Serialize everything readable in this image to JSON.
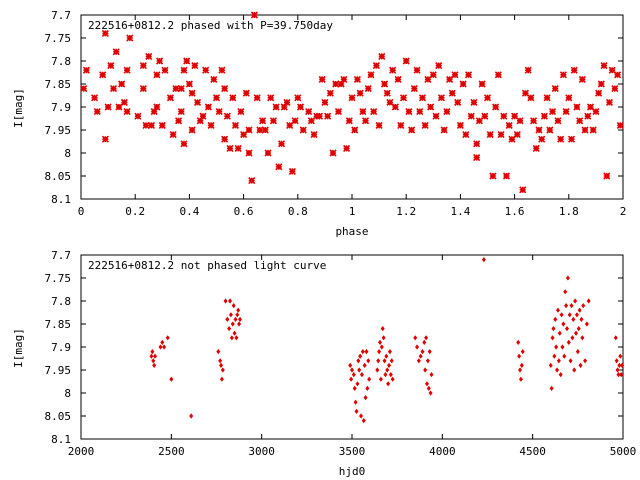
{
  "colors": {
    "points": "#e00000",
    "axes": "#000000",
    "background": "#ffffff"
  },
  "chart_data": [
    {
      "type": "scatter",
      "title": "222516+0812.2 phased with P=39.750day",
      "xlabel": "phase",
      "ylabel": "I[mag]",
      "xlim": [
        0,
        2
      ],
      "ylim": [
        8.1,
        7.7
      ],
      "y_inverted": true,
      "x_ticks": [
        0,
        0.2,
        0.4,
        0.6,
        0.8,
        1,
        1.2,
        1.4,
        1.6,
        1.8,
        2
      ],
      "x_tick_labels": [
        "0",
        "0.2",
        "0.4",
        "0.6",
        "0.8",
        "1",
        "1.2",
        "1.4",
        "1.6",
        "1.8",
        "2"
      ],
      "y_ticks": [
        7.7,
        7.75,
        7.8,
        7.85,
        7.9,
        7.95,
        8,
        8.05,
        8.1
      ],
      "y_tick_labels": [
        "7.7",
        "7.75",
        "7.8",
        "7.85",
        "7.9",
        "7.95",
        "8",
        "8.05",
        "8.1"
      ],
      "grid": false,
      "marker": "star",
      "points": [
        [
          0.01,
          7.86
        ],
        [
          0.02,
          7.82
        ],
        [
          0.05,
          7.88
        ],
        [
          0.06,
          7.91
        ],
        [
          0.08,
          7.83
        ],
        [
          0.09,
          7.74
        ],
        [
          0.09,
          7.97
        ],
        [
          0.1,
          7.9
        ],
        [
          0.11,
          7.81
        ],
        [
          0.12,
          7.86
        ],
        [
          0.13,
          7.78
        ],
        [
          0.14,
          7.9
        ],
        [
          0.15,
          7.85
        ],
        [
          0.16,
          7.89
        ],
        [
          0.17,
          7.82
        ],
        [
          0.17,
          7.91
        ],
        [
          0.18,
          7.75
        ],
        [
          0.21,
          7.92
        ],
        [
          0.23,
          7.81
        ],
        [
          0.23,
          7.86
        ],
        [
          0.24,
          7.94
        ],
        [
          0.25,
          7.79
        ],
        [
          0.26,
          7.94
        ],
        [
          0.27,
          7.91
        ],
        [
          0.28,
          7.83
        ],
        [
          0.28,
          7.9
        ],
        [
          0.29,
          7.8
        ],
        [
          0.3,
          7.94
        ],
        [
          0.31,
          7.82
        ],
        [
          0.33,
          7.88
        ],
        [
          0.34,
          7.96
        ],
        [
          0.35,
          7.86
        ],
        [
          0.36,
          7.93
        ],
        [
          0.37,
          7.86
        ],
        [
          0.37,
          7.91
        ],
        [
          0.38,
          7.98
        ],
        [
          0.38,
          7.82
        ],
        [
          0.39,
          7.8
        ],
        [
          0.4,
          7.85
        ],
        [
          0.41,
          7.87
        ],
        [
          0.41,
          7.95
        ],
        [
          0.42,
          7.81
        ],
        [
          0.43,
          7.89
        ],
        [
          0.44,
          7.93
        ],
        [
          0.45,
          7.92
        ],
        [
          0.46,
          7.82
        ],
        [
          0.47,
          7.9
        ],
        [
          0.48,
          7.94
        ],
        [
          0.49,
          7.84
        ],
        [
          0.5,
          7.88
        ],
        [
          0.51,
          7.91
        ],
        [
          0.52,
          7.82
        ],
        [
          0.53,
          7.86
        ],
        [
          0.53,
          7.97
        ],
        [
          0.54,
          7.92
        ],
        [
          0.55,
          7.99
        ],
        [
          0.56,
          7.88
        ],
        [
          0.57,
          7.94
        ],
        [
          0.58,
          7.99
        ],
        [
          0.59,
          7.91
        ],
        [
          0.6,
          7.96
        ],
        [
          0.61,
          7.87
        ],
        [
          0.62,
          7.95
        ],
        [
          0.62,
          8.0
        ],
        [
          0.63,
          8.06
        ],
        [
          0.64,
          7.7
        ],
        [
          0.65,
          7.88
        ],
        [
          0.66,
          7.95
        ],
        [
          0.67,
          7.93
        ],
        [
          0.68,
          7.95
        ],
        [
          0.69,
          8.0
        ],
        [
          0.7,
          7.88
        ],
        [
          0.71,
          7.93
        ],
        [
          0.72,
          7.9
        ],
        [
          0.73,
          8.03
        ],
        [
          0.74,
          7.98
        ],
        [
          0.75,
          7.9
        ],
        [
          0.76,
          7.89
        ],
        [
          0.77,
          7.94
        ],
        [
          0.78,
          8.04
        ],
        [
          0.79,
          7.93
        ],
        [
          0.8,
          7.88
        ],
        [
          0.81,
          7.9
        ],
        [
          0.82,
          7.95
        ],
        [
          0.84,
          7.91
        ],
        [
          0.85,
          7.93
        ],
        [
          0.86,
          7.96
        ],
        [
          0.87,
          7.92
        ],
        [
          0.88,
          7.92
        ],
        [
          0.89,
          7.84
        ],
        [
          0.9,
          7.89
        ],
        [
          0.91,
          7.92
        ],
        [
          0.92,
          7.87
        ],
        [
          0.93,
          8.0
        ],
        [
          0.94,
          7.85
        ],
        [
          0.95,
          7.91
        ],
        [
          0.96,
          7.85
        ],
        [
          0.97,
          7.84
        ],
        [
          0.98,
          7.99
        ],
        [
          0.99,
          7.93
        ],
        [
          1.0,
          7.88
        ],
        [
          1.01,
          7.95
        ],
        [
          1.02,
          7.84
        ],
        [
          1.03,
          7.87
        ],
        [
          1.04,
          7.91
        ],
        [
          1.05,
          7.93
        ],
        [
          1.06,
          7.86
        ],
        [
          1.07,
          7.83
        ],
        [
          1.08,
          7.91
        ],
        [
          1.09,
          7.81
        ],
        [
          1.1,
          7.94
        ],
        [
          1.11,
          7.79
        ],
        [
          1.12,
          7.85
        ],
        [
          1.13,
          7.87
        ],
        [
          1.14,
          7.89
        ],
        [
          1.15,
          7.82
        ],
        [
          1.16,
          7.9
        ],
        [
          1.17,
          7.84
        ],
        [
          1.18,
          7.94
        ],
        [
          1.19,
          7.88
        ],
        [
          1.2,
          7.8
        ],
        [
          1.21,
          7.91
        ],
        [
          1.22,
          7.95
        ],
        [
          1.23,
          7.86
        ],
        [
          1.24,
          7.82
        ],
        [
          1.25,
          7.91
        ],
        [
          1.26,
          7.88
        ],
        [
          1.27,
          7.94
        ],
        [
          1.28,
          7.84
        ],
        [
          1.29,
          7.9
        ],
        [
          1.3,
          7.83
        ],
        [
          1.31,
          7.92
        ],
        [
          1.32,
          7.81
        ],
        [
          1.33,
          7.88
        ],
        [
          1.34,
          7.95
        ],
        [
          1.35,
          7.91
        ],
        [
          1.36,
          7.84
        ],
        [
          1.37,
          7.87
        ],
        [
          1.38,
          7.83
        ],
        [
          1.39,
          7.89
        ],
        [
          1.4,
          7.94
        ],
        [
          1.41,
          7.85
        ],
        [
          1.42,
          7.96
        ],
        [
          1.43,
          7.83
        ],
        [
          1.44,
          7.92
        ],
        [
          1.45,
          7.89
        ],
        [
          1.46,
          7.98
        ],
        [
          1.46,
          8.01
        ],
        [
          1.47,
          7.93
        ],
        [
          1.48,
          7.85
        ],
        [
          1.49,
          7.92
        ],
        [
          1.5,
          7.88
        ],
        [
          1.51,
          7.96
        ],
        [
          1.52,
          8.05
        ],
        [
          1.53,
          7.9
        ],
        [
          1.54,
          7.83
        ],
        [
          1.55,
          7.96
        ],
        [
          1.56,
          7.92
        ],
        [
          1.57,
          8.05
        ],
        [
          1.58,
          7.94
        ],
        [
          1.59,
          7.97
        ],
        [
          1.6,
          7.92
        ],
        [
          1.61,
          7.96
        ],
        [
          1.62,
          7.93
        ],
        [
          1.63,
          8.08
        ],
        [
          1.64,
          7.87
        ],
        [
          1.65,
          7.82
        ],
        [
          1.66,
          7.88
        ],
        [
          1.67,
          7.93
        ],
        [
          1.68,
          7.99
        ],
        [
          1.69,
          7.95
        ],
        [
          1.7,
          7.97
        ],
        [
          1.71,
          7.92
        ],
        [
          1.72,
          7.88
        ],
        [
          1.73,
          7.95
        ],
        [
          1.74,
          7.91
        ],
        [
          1.75,
          7.86
        ],
        [
          1.76,
          7.93
        ],
        [
          1.77,
          7.97
        ],
        [
          1.78,
          7.83
        ],
        [
          1.79,
          7.91
        ],
        [
          1.8,
          7.88
        ],
        [
          1.81,
          7.97
        ],
        [
          1.82,
          7.82
        ],
        [
          1.83,
          7.9
        ],
        [
          1.84,
          7.93
        ],
        [
          1.85,
          7.84
        ],
        [
          1.86,
          7.95
        ],
        [
          1.87,
          7.92
        ],
        [
          1.88,
          7.9
        ],
        [
          1.89,
          7.95
        ],
        [
          1.9,
          7.91
        ],
        [
          1.91,
          7.87
        ],
        [
          1.92,
          7.85
        ],
        [
          1.93,
          7.81
        ],
        [
          1.94,
          8.05
        ],
        [
          1.95,
          7.89
        ],
        [
          1.96,
          7.82
        ],
        [
          1.97,
          7.86
        ],
        [
          1.98,
          7.83
        ],
        [
          1.99,
          7.94
        ]
      ]
    },
    {
      "type": "scatter",
      "title": "222516+0812.2 not phased light curve",
      "xlabel": "hjd0",
      "ylabel": "I[mag]",
      "xlim": [
        2000,
        5000
      ],
      "ylim": [
        8.1,
        7.7
      ],
      "y_inverted": true,
      "x_ticks": [
        2000,
        2500,
        3000,
        3500,
        4000,
        4500,
        5000
      ],
      "x_tick_labels": [
        "2000",
        "2500",
        "3000",
        "3500",
        "4000",
        "4500",
        "5000"
      ],
      "y_ticks": [
        7.7,
        7.75,
        7.8,
        7.85,
        7.9,
        7.95,
        8,
        8.05,
        8.1
      ],
      "y_tick_labels": [
        "7.7",
        "7.75",
        "7.8",
        "7.85",
        "7.9",
        "7.95",
        "8",
        "8.05",
        "8.1"
      ],
      "grid": false,
      "marker": "diamond",
      "points": [
        [
          2390,
          7.92
        ],
        [
          2395,
          7.91
        ],
        [
          2400,
          7.93
        ],
        [
          2405,
          7.94
        ],
        [
          2410,
          7.92
        ],
        [
          2440,
          7.9
        ],
        [
          2450,
          7.89
        ],
        [
          2460,
          7.9
        ],
        [
          2480,
          7.88
        ],
        [
          2500,
          7.97
        ],
        [
          2610,
          8.05
        ],
        [
          2760,
          7.91
        ],
        [
          2770,
          7.93
        ],
        [
          2775,
          7.94
        ],
        [
          2780,
          7.97
        ],
        [
          2785,
          7.95
        ],
        [
          2800,
          7.8
        ],
        [
          2810,
          7.84
        ],
        [
          2820,
          7.86
        ],
        [
          2825,
          7.8
        ],
        [
          2830,
          7.83
        ],
        [
          2835,
          7.88
        ],
        [
          2840,
          7.85
        ],
        [
          2845,
          7.81
        ],
        [
          2850,
          7.87
        ],
        [
          2855,
          7.84
        ],
        [
          2860,
          7.88
        ],
        [
          2865,
          7.83
        ],
        [
          2870,
          7.82
        ],
        [
          2875,
          7.85
        ],
        [
          2880,
          7.84
        ],
        [
          3490,
          7.94
        ],
        [
          3495,
          7.97
        ],
        [
          3500,
          7.95
        ],
        [
          3510,
          7.96
        ],
        [
          3515,
          7.99
        ],
        [
          3520,
          8.02
        ],
        [
          3525,
          8.04
        ],
        [
          3530,
          7.98
        ],
        [
          3535,
          7.93
        ],
        [
          3540,
          7.95
        ],
        [
          3545,
          7.92
        ],
        [
          3550,
          8.05
        ],
        [
          3555,
          7.96
        ],
        [
          3560,
          7.91
        ],
        [
          3565,
          8.06
        ],
        [
          3570,
          7.94
        ],
        [
          3575,
          8.01
        ],
        [
          3580,
          7.91
        ],
        [
          3585,
          7.99
        ],
        [
          3590,
          7.93
        ],
        [
          3595,
          7.97
        ],
        [
          3640,
          7.95
        ],
        [
          3645,
          7.93
        ],
        [
          3650,
          7.91
        ],
        [
          3655,
          7.89
        ],
        [
          3660,
          7.97
        ],
        [
          3665,
          7.9
        ],
        [
          3670,
          7.86
        ],
        [
          3675,
          7.88
        ],
        [
          3680,
          7.93
        ],
        [
          3685,
          7.96
        ],
        [
          3690,
          7.92
        ],
        [
          3695,
          7.95
        ],
        [
          3700,
          7.98
        ],
        [
          3705,
          7.94
        ],
        [
          3710,
          7.91
        ],
        [
          3715,
          7.96
        ],
        [
          3720,
          7.93
        ],
        [
          3725,
          7.97
        ],
        [
          3850,
          7.88
        ],
        [
          3860,
          7.9
        ],
        [
          3870,
          7.93
        ],
        [
          3880,
          7.92
        ],
        [
          3890,
          7.91
        ],
        [
          3900,
          7.89
        ],
        [
          3905,
          7.95
        ],
        [
          3910,
          7.88
        ],
        [
          3915,
          7.98
        ],
        [
          3920,
          7.93
        ],
        [
          3925,
          7.99
        ],
        [
          3930,
          7.91
        ],
        [
          3935,
          8.0
        ],
        [
          3940,
          7.96
        ],
        [
          4230,
          7.71
        ],
        [
          4420,
          7.89
        ],
        [
          4425,
          7.92
        ],
        [
          4430,
          7.95
        ],
        [
          4435,
          7.97
        ],
        [
          4440,
          7.94
        ],
        [
          4445,
          7.91
        ],
        [
          4600,
          7.94
        ],
        [
          4605,
          7.99
        ],
        [
          4610,
          7.88
        ],
        [
          4615,
          7.86
        ],
        [
          4620,
          7.92
        ],
        [
          4625,
          7.84
        ],
        [
          4630,
          7.9
        ],
        [
          4635,
          7.95
        ],
        [
          4640,
          7.82
        ],
        [
          4645,
          7.93
        ],
        [
          4650,
          7.87
        ],
        [
          4655,
          7.96
        ],
        [
          4660,
          7.83
        ],
        [
          4665,
          7.9
        ],
        [
          4670,
          7.85
        ],
        [
          4675,
          7.92
        ],
        [
          4680,
          7.78
        ],
        [
          4685,
          7.81
        ],
        [
          4690,
          7.86
        ],
        [
          4695,
          7.75
        ],
        [
          4700,
          7.89
        ],
        [
          4705,
          7.83
        ],
        [
          4710,
          7.93
        ],
        [
          4715,
          7.81
        ],
        [
          4720,
          7.88
        ],
        [
          4725,
          7.84
        ],
        [
          4730,
          7.95
        ],
        [
          4735,
          7.8
        ],
        [
          4740,
          7.87
        ],
        [
          4745,
          7.83
        ],
        [
          4750,
          7.91
        ],
        [
          4755,
          7.86
        ],
        [
          4760,
          7.82
        ],
        [
          4765,
          7.94
        ],
        [
          4770,
          7.84
        ],
        [
          4775,
          7.88
        ],
        [
          4780,
          7.81
        ],
        [
          4790,
          7.93
        ],
        [
          4800,
          7.85
        ],
        [
          4810,
          7.8
        ],
        [
          4960,
          7.88
        ],
        [
          4965,
          7.93
        ],
        [
          4970,
          7.95
        ],
        [
          4975,
          7.96
        ],
        [
          4980,
          7.94
        ],
        [
          4985,
          7.92
        ],
        [
          4990,
          7.96
        ],
        [
          4995,
          7.94
        ]
      ]
    }
  ]
}
